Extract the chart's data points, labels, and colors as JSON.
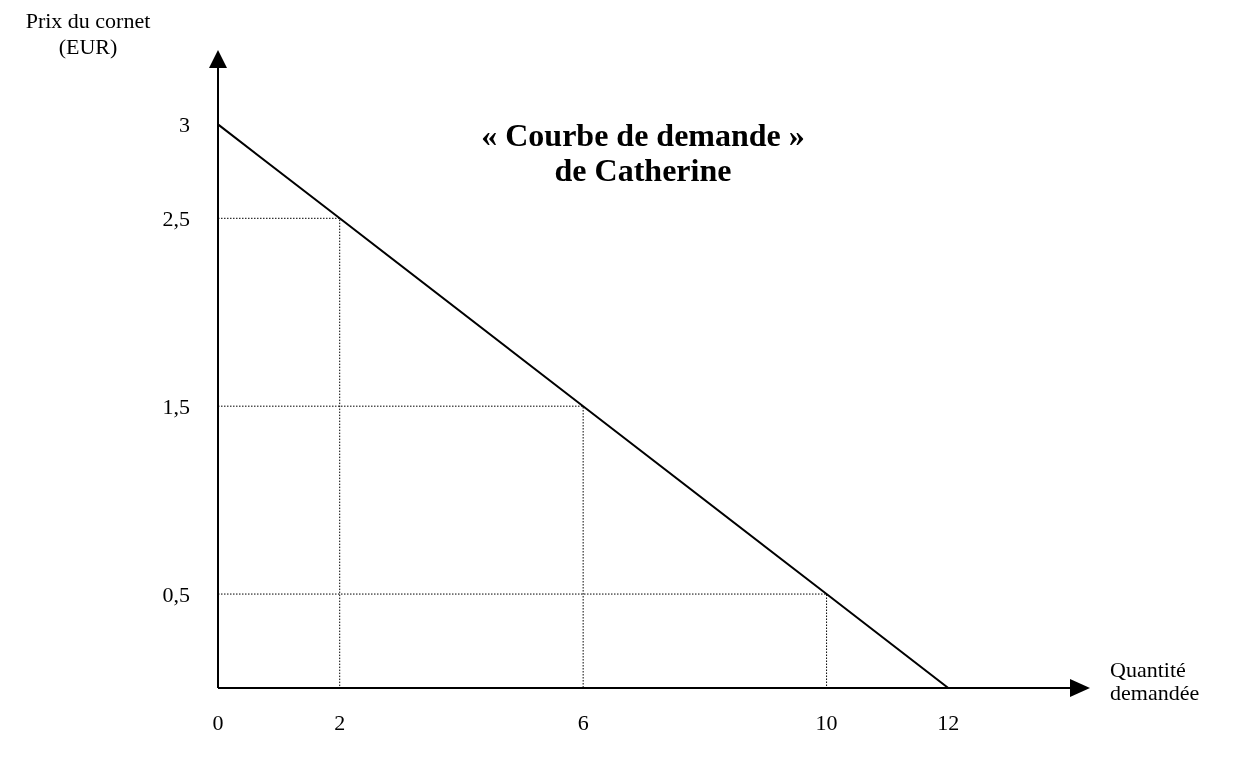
{
  "chart_data": {
    "type": "line",
    "title": "« Courbe de demande » de Catherine",
    "xlabel": "Quantité demandée",
    "ylabel": "Prix du cornet (EUR)",
    "x": [
      0,
      2,
      6,
      10,
      12
    ],
    "series": [
      {
        "color": "#000000",
        "values": [
          3,
          2.5,
          1.5,
          0.5,
          0
        ]
      },
      {
        "color": "#000000",
        "line_style": "dotted",
        "x": [
          0,
          2,
          2
        ],
        "values": [
          2.5,
          2.5,
          0
        ]
      },
      {
        "color": "#000000",
        "line_style": "dotted",
        "x": [
          0,
          6,
          6
        ],
        "values": [
          1.5,
          1.5,
          0
        ]
      },
      {
        "color": "#000000",
        "line_style": "dotted",
        "x": [
          0,
          10,
          10
        ],
        "values": [
          0.5,
          0.5,
          0
        ]
      }
    ],
    "xlim": [
      0,
      14
    ],
    "xticks": [
      0,
      2,
      6,
      10,
      12
    ],
    "ylim": [
      0,
      3.3
    ],
    "yticks": [
      {
        "value": 0.5,
        "label": "0,5"
      },
      {
        "value": 1.5,
        "label": "1,5"
      },
      {
        "value": 2.5,
        "label": "2,5"
      },
      3
    ],
    "grid": false,
    "marker": "none",
    "line_style": "solid"
  }
}
